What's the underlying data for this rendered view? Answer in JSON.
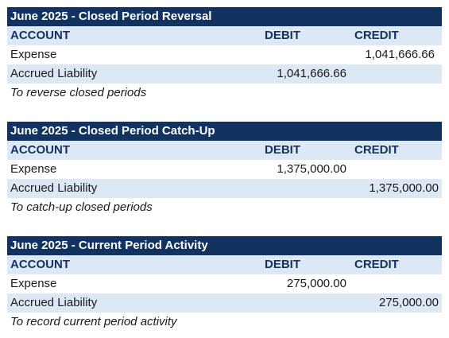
{
  "journals": [
    {
      "title": "June 2025 - Closed Period Reversal",
      "headers": {
        "account": "ACCOUNT",
        "debit": "DEBIT",
        "credit": "CREDIT"
      },
      "rows": [
        {
          "account": "Expense",
          "debit": "",
          "credit": "1,041,666.66"
        },
        {
          "account": "Accrued Liability",
          "debit": "1,041,666.66",
          "credit": ""
        }
      ],
      "memo": "To reverse closed periods"
    },
    {
      "title": "June 2025 - Closed Period Catch-Up",
      "headers": {
        "account": "ACCOUNT",
        "debit": "DEBIT",
        "credit": "CREDIT"
      },
      "rows": [
        {
          "account": "Expense",
          "debit": "1,375,000.00",
          "credit": ""
        },
        {
          "account": "Accrued Liability",
          "debit": "",
          "credit": "1,375,000.00"
        }
      ],
      "memo": "To catch-up closed periods"
    },
    {
      "title": "June 2025 - Current Period Activity",
      "headers": {
        "account": "ACCOUNT",
        "debit": "DEBIT",
        "credit": "CREDIT"
      },
      "rows": [
        {
          "account": "Expense",
          "debit": "275,000.00",
          "credit": ""
        },
        {
          "account": "Accrued Liability",
          "debit": "",
          "credit": "275,000.00"
        }
      ],
      "memo": "To record current period activity"
    }
  ]
}
